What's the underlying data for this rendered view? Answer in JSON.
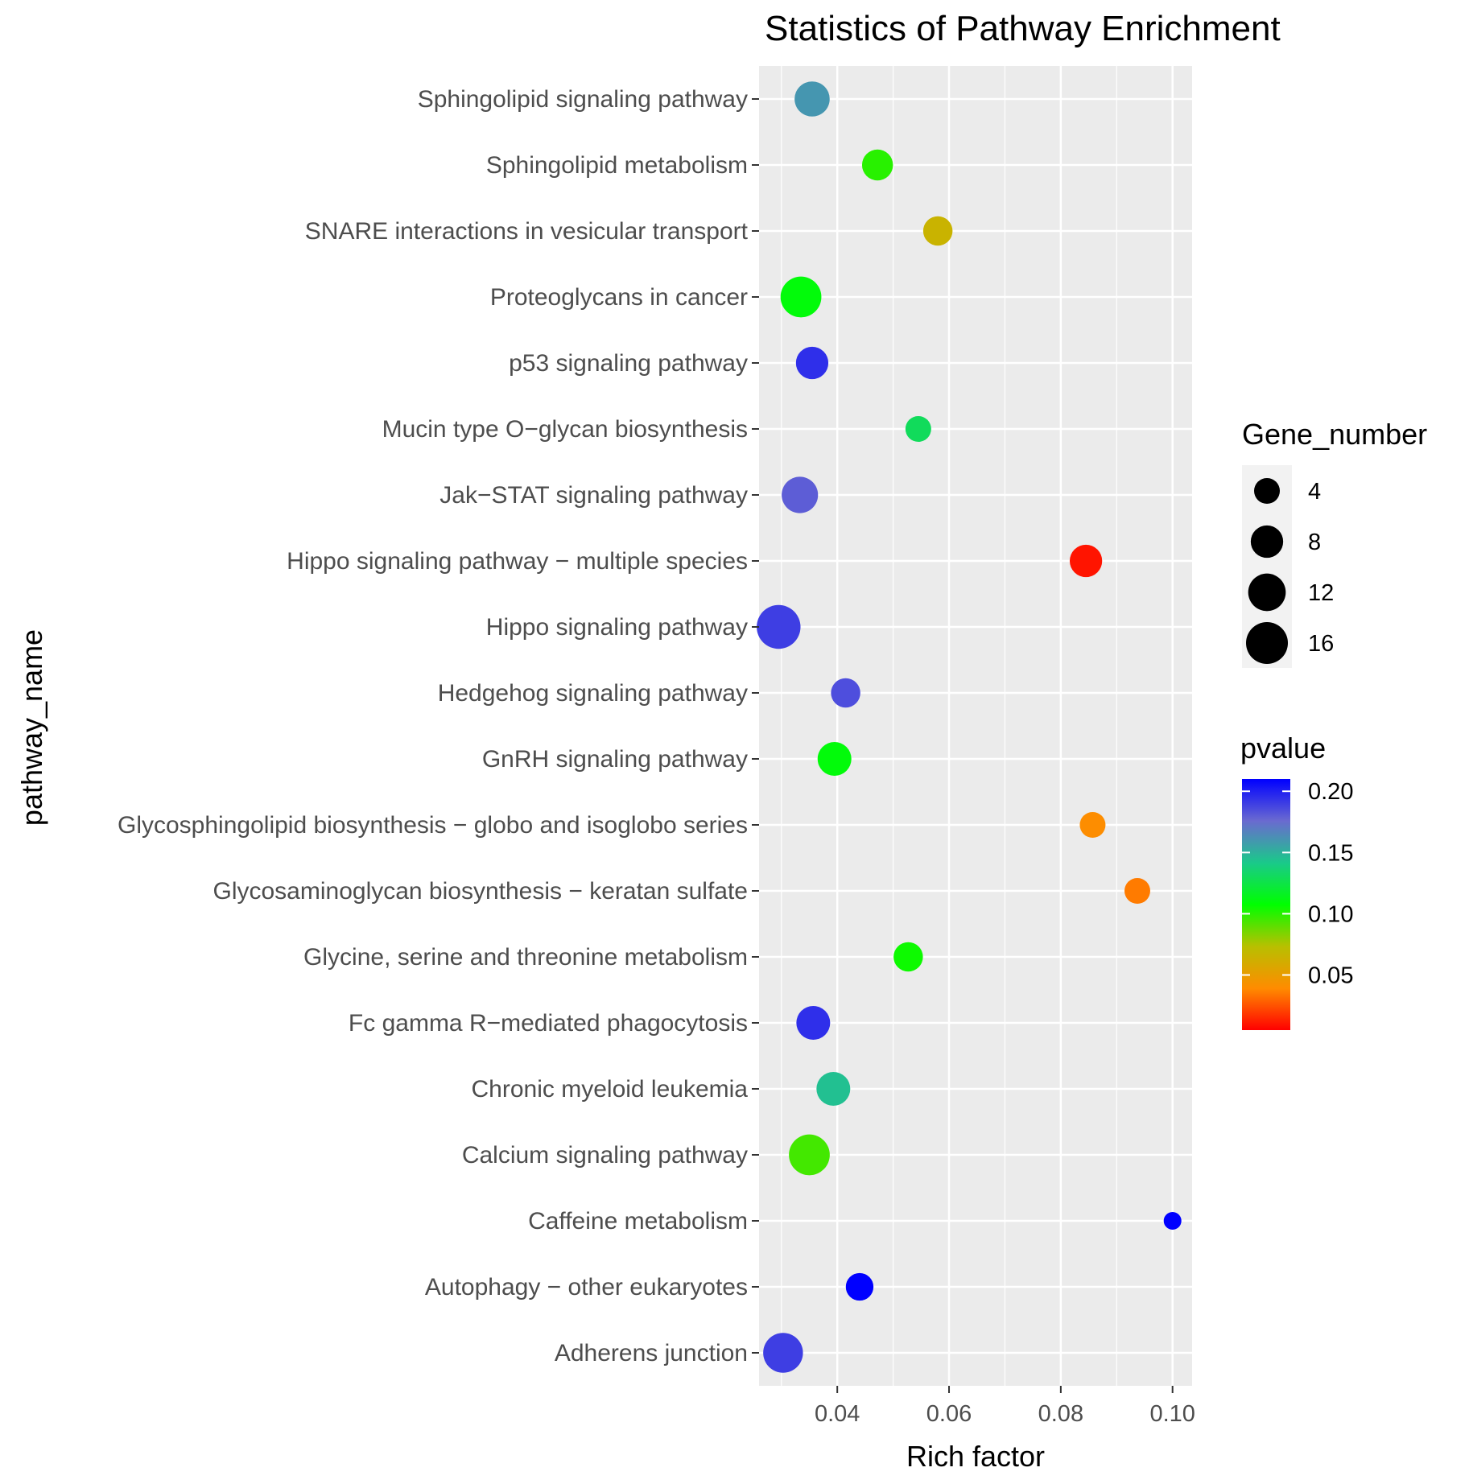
{
  "chart_data": {
    "type": "scatter",
    "title": "Statistics of Pathway Enrichment",
    "xlabel": "Rich factor",
    "ylabel": "pathway_name",
    "xlim": [
      0.026,
      0.1035
    ],
    "x_ticks": [
      0.04,
      0.06,
      0.08,
      0.1
    ],
    "x_tick_labels": [
      "0.04",
      "0.06",
      "0.08",
      "0.10"
    ],
    "grid": true,
    "categories": [
      "Sphingolipid signaling pathway",
      "Sphingolipid metabolism",
      "SNARE interactions in vesicular transport",
      "Proteoglycans in cancer",
      "p53 signaling pathway",
      "Mucin type O−glycan biosynthesis",
      "Jak−STAT signaling pathway",
      "Hippo signaling pathway − multiple species",
      "Hippo signaling pathway",
      "Hedgehog signaling pathway",
      "GnRH signaling pathway",
      "Glycosphingolipid biosynthesis − globo and isoglobo series",
      "Glycosaminoglycan biosynthesis − keratan sulfate",
      "Glycine, serine and threonine metabolism",
      "Fc gamma R−mediated phagocytosis",
      "Chronic myeloid leukemia",
      "Calcium signaling pathway",
      "Caffeine metabolism",
      "Autophagy − other eukaryotes",
      "Adherens junction"
    ],
    "points": [
      {
        "pathway": "Sphingolipid signaling pathway",
        "rich_factor": 0.0355,
        "gene_number": 10,
        "pvalue": 0.16
      },
      {
        "pathway": "Sphingolipid metabolism",
        "rich_factor": 0.0472,
        "gene_number": 7,
        "pvalue": 0.1
      },
      {
        "pathway": "SNARE interactions in vesicular transport",
        "rich_factor": 0.058,
        "gene_number": 6,
        "pvalue": 0.065
      },
      {
        "pathway": "Proteoglycans in cancer",
        "rich_factor": 0.0335,
        "gene_number": 15,
        "pvalue": 0.11
      },
      {
        "pathway": "p53 signaling pathway",
        "rich_factor": 0.0355,
        "gene_number": 8,
        "pvalue": 0.195
      },
      {
        "pathway": "Mucin type O−glycan biosynthesis",
        "rich_factor": 0.0545,
        "gene_number": 4,
        "pvalue": 0.13
      },
      {
        "pathway": "Jak−STAT signaling pathway",
        "rich_factor": 0.0333,
        "gene_number": 11,
        "pvalue": 0.18
      },
      {
        "pathway": "Hippo signaling pathway − multiple species",
        "rich_factor": 0.0845,
        "gene_number": 8,
        "pvalue": 0.01
      },
      {
        "pathway": "Hippo signaling pathway",
        "rich_factor": 0.0295,
        "gene_number": 18,
        "pvalue": 0.19
      },
      {
        "pathway": "Hedgehog signaling pathway",
        "rich_factor": 0.0415,
        "gene_number": 6,
        "pvalue": 0.185
      },
      {
        "pathway": "GnRH signaling pathway",
        "rich_factor": 0.0395,
        "gene_number": 9,
        "pvalue": 0.11
      },
      {
        "pathway": "Glycosphingolipid biosynthesis − globo and isoglobo series",
        "rich_factor": 0.0857,
        "gene_number": 4,
        "pvalue": 0.04
      },
      {
        "pathway": "Glycosaminoglycan biosynthesis − keratan sulfate",
        "rich_factor": 0.0937,
        "gene_number": 4,
        "pvalue": 0.035
      },
      {
        "pathway": "Glycine, serine and threonine metabolism",
        "rich_factor": 0.0527,
        "gene_number": 6,
        "pvalue": 0.105
      },
      {
        "pathway": "Fc gamma R−mediated phagocytosis",
        "rich_factor": 0.0357,
        "gene_number": 9,
        "pvalue": 0.195
      },
      {
        "pathway": "Chronic myeloid leukemia",
        "rich_factor": 0.0393,
        "gene_number": 9,
        "pvalue": 0.145
      },
      {
        "pathway": "Calcium signaling pathway",
        "rich_factor": 0.035,
        "gene_number": 15,
        "pvalue": 0.095
      },
      {
        "pathway": "Caffeine metabolism",
        "rich_factor": 0.1,
        "gene_number": 1,
        "pvalue": 0.21
      },
      {
        "pathway": "Autophagy − other eukaryotes",
        "rich_factor": 0.044,
        "gene_number": 5,
        "pvalue": 0.21
      },
      {
        "pathway": "Adherens junction",
        "rich_factor": 0.0303,
        "gene_number": 14,
        "pvalue": 0.19
      }
    ],
    "size_legend": {
      "title": "Gene_number",
      "values": [
        4,
        8,
        12,
        16
      ],
      "labels": [
        "4",
        "8",
        "12",
        "16"
      ]
    },
    "color_legend": {
      "title": "pvalue",
      "range": [
        0.005,
        0.21
      ],
      "ticks": [
        0.05,
        0.1,
        0.15,
        0.2
      ],
      "tick_labels": [
        "0.05",
        "0.10",
        "0.15",
        "0.20"
      ],
      "low_to_high_colors": [
        "#ff0000",
        "#ff8c00",
        "#b8c000",
        "#00ff00",
        "#1ac98a",
        "#6a6ad0",
        "#0000ff"
      ]
    }
  }
}
